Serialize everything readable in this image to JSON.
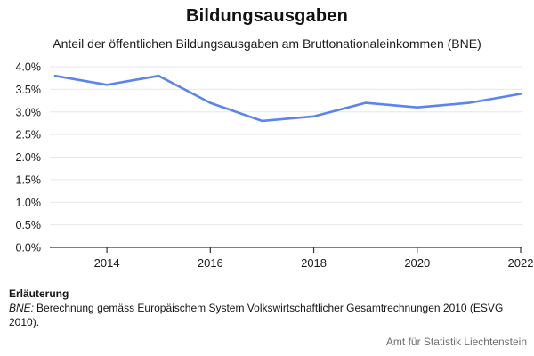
{
  "chart_data": {
    "type": "line",
    "title": "Bildungsausgaben",
    "subtitle": "Anteil der öffentlichen Bildungsausgaben am Bruttonationaleinkommen (BNE)",
    "x": [
      2013,
      2014,
      2015,
      2016,
      2017,
      2018,
      2019,
      2020,
      2021,
      2022
    ],
    "values": [
      3.8,
      3.6,
      3.8,
      3.2,
      2.8,
      2.9,
      3.2,
      3.1,
      3.2,
      3.4
    ],
    "series_name": "Anteil der öffentlichen Bildungsausgaben am BNE",
    "xlabel": "",
    "ylabel": "",
    "ylim": [
      0.0,
      4.0
    ],
    "yticks": [
      0.0,
      0.5,
      1.0,
      1.5,
      2.0,
      2.5,
      3.0,
      3.5,
      4.0
    ],
    "ytick_labels": [
      "0.0%",
      "0.5%",
      "1.0%",
      "1.5%",
      "2.0%",
      "2.5%",
      "3.0%",
      "3.5%",
      "4.0%"
    ],
    "xticks": [
      2014,
      2016,
      2018,
      2020,
      2022
    ],
    "xtick_labels": [
      "2014",
      "2016",
      "2018",
      "2020",
      "2022"
    ],
    "grid": true,
    "legend_position": "none",
    "line_color": "#5b84ec",
    "grid_color": "#e7e7e7",
    "axis_color": "#333333",
    "tick_label_color": "#1a1a1a"
  },
  "footer": {
    "note_heading": "Erläuterung",
    "note_term": "BNE:",
    "note_text": "Berechnung gemäss Europäischem System Volkswirtschaftlicher Gesamtrechnungen 2010 (ESVG 2010).",
    "source": "Amt für Statistik Liechtenstein"
  }
}
